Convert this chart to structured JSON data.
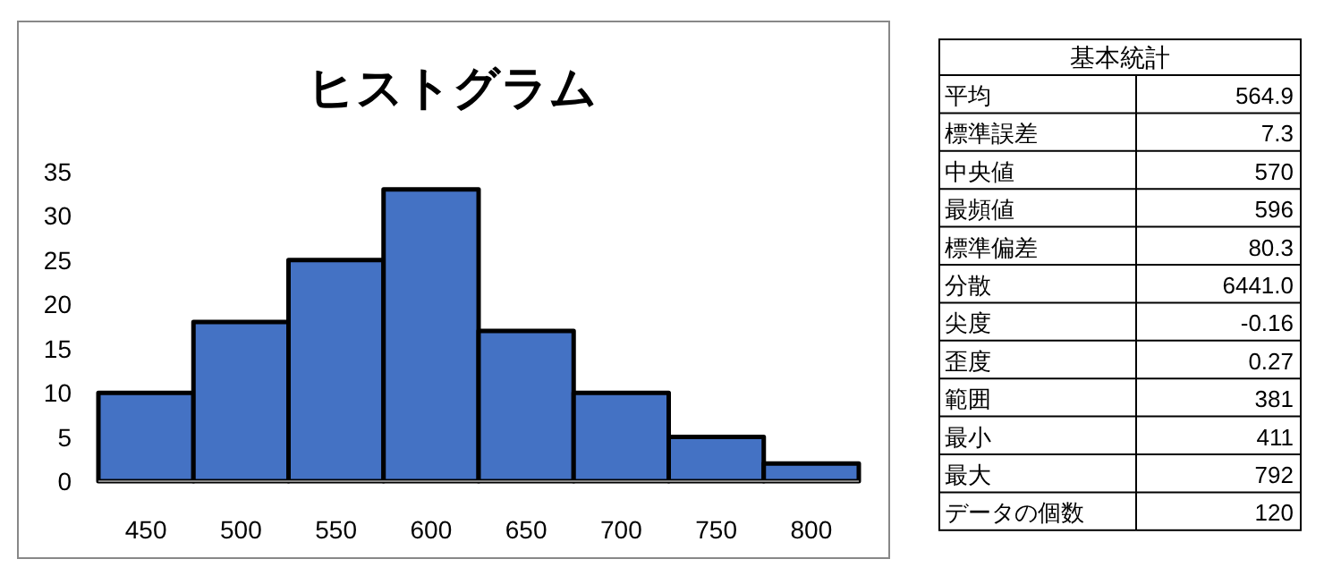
{
  "chart_data": [
    {
      "type": "histogram",
      "title": "ヒストグラム",
      "bins": [
        425,
        475,
        525,
        575,
        625,
        675,
        725,
        775,
        825
      ],
      "values": [
        10,
        18,
        25,
        33,
        17,
        10,
        5,
        2
      ],
      "color": "#4472c4",
      "xlim": [
        425,
        825
      ],
      "xticks": [
        450,
        500,
        550,
        600,
        650,
        700,
        750,
        800
      ],
      "ylim": [
        0,
        35
      ],
      "yticks": [
        0,
        5,
        10,
        15,
        20,
        25,
        30,
        35
      ],
      "grid": false
    },
    {
      "type": "other",
      "title": "基本統計",
      "categories": [
        "平均",
        "標準誤差",
        "中央値",
        "最頻値",
        "標準偏差",
        "分散",
        "尖度",
        "歪度",
        "範囲",
        "最小",
        "最大",
        "データの個数"
      ],
      "values": [
        564.9,
        7.3,
        570,
        596,
        80.3,
        6441.0,
        -0.16,
        0.27,
        381,
        411,
        792,
        120
      ],
      "value_labels": [
        "564.9",
        "7.3",
        "570",
        "596",
        "80.3",
        "6441.0",
        "-0.16",
        "0.27",
        "381",
        "411",
        "792",
        "120"
      ]
    }
  ]
}
